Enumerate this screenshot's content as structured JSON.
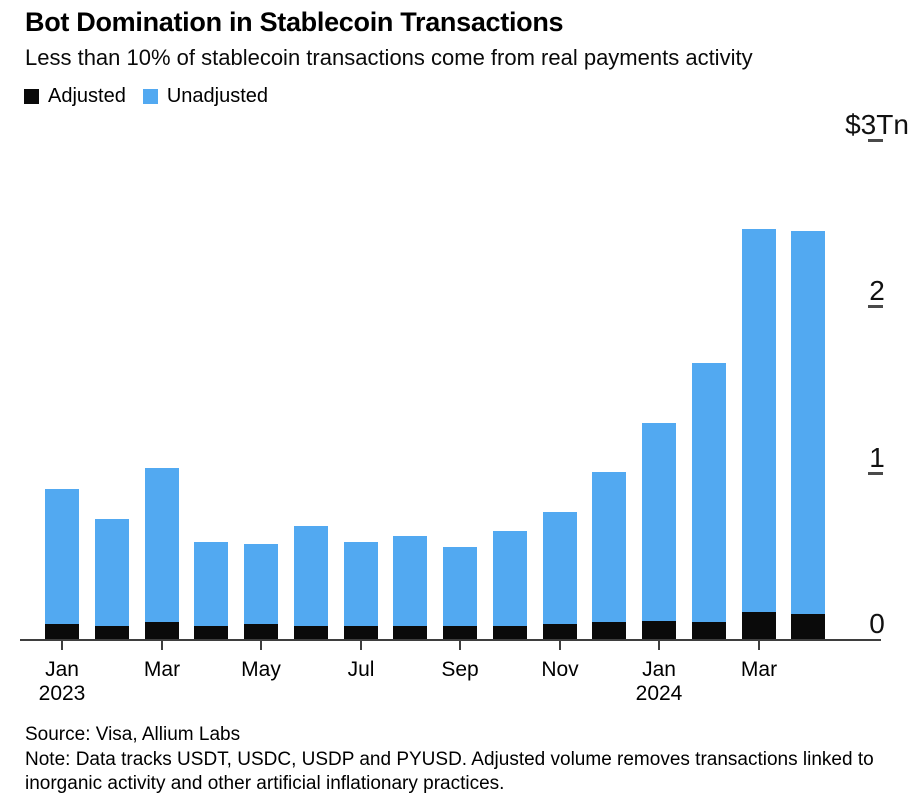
{
  "header": {
    "title": "Bot Domination in Stablecoin Transactions",
    "subtitle": "Less than 10% of stablecoin transactions come from real payments activity"
  },
  "legend": {
    "items": [
      {
        "label": "Adjusted",
        "color": "#0a0a0a"
      },
      {
        "label": "Unadjusted",
        "color": "#52a9f1"
      }
    ]
  },
  "chart_data": {
    "type": "bar",
    "style": "overlay-stacked-columns",
    "title": "Bot Domination in Stablecoin Transactions",
    "subtitle": "Less than 10% of stablecoin transactions come from real payments activity",
    "unit": "trillions of US dollars",
    "categories": [
      "Jan 2023",
      "Feb 2023",
      "Mar 2023",
      "Apr 2023",
      "May 2023",
      "Jun 2023",
      "Jul 2023",
      "Aug 2023",
      "Sep 2023",
      "Oct 2023",
      "Nov 2023",
      "Dec 2023",
      "Jan 2024",
      "Feb 2024",
      "Mar 2024",
      "Apr 2024"
    ],
    "series": [
      {
        "name": "Adjusted",
        "color": "#0a0a0a",
        "values": [
          0.09,
          0.08,
          0.1,
          0.08,
          0.09,
          0.08,
          0.08,
          0.08,
          0.08,
          0.08,
          0.09,
          0.1,
          0.11,
          0.1,
          0.16,
          0.15
        ]
      },
      {
        "name": "Unadjusted",
        "color": "#52a9f1",
        "values": [
          0.9,
          0.72,
          1.03,
          0.58,
          0.57,
          0.68,
          0.58,
          0.62,
          0.55,
          0.65,
          0.76,
          1.0,
          1.3,
          1.66,
          2.46,
          2.45
        ]
      }
    ],
    "ylim": [
      0,
      3
    ],
    "grid": false,
    "legend_position": "top-left",
    "y_axis": {
      "side": "right",
      "ticks": [
        {
          "value": 3,
          "label": "$3Tn",
          "dash": true
        },
        {
          "value": 2,
          "label": "2",
          "dash": true
        },
        {
          "value": 1,
          "label": "1",
          "dash": true
        },
        {
          "value": 0,
          "label": "0",
          "dash": false
        }
      ]
    },
    "x_axis": {
      "ticks": [
        {
          "bar_index": 0,
          "label": "Jan",
          "sublabel": "2023"
        },
        {
          "bar_index": 2,
          "label": "Mar"
        },
        {
          "bar_index": 4,
          "label": "May"
        },
        {
          "bar_index": 6,
          "label": "Jul"
        },
        {
          "bar_index": 8,
          "label": "Sep"
        },
        {
          "bar_index": 10,
          "label": "Nov"
        },
        {
          "bar_index": 12,
          "label": "Jan",
          "sublabel": "2024"
        },
        {
          "bar_index": 14,
          "label": "Mar"
        }
      ]
    }
  },
  "footer": {
    "source": "Source: Visa, Allium Labs",
    "note": "Note: Data tracks USDT, USDC, USDP and PYUSD. Adjusted volume removes transactions linked to inorganic activity and other artificial inflationary practices."
  }
}
